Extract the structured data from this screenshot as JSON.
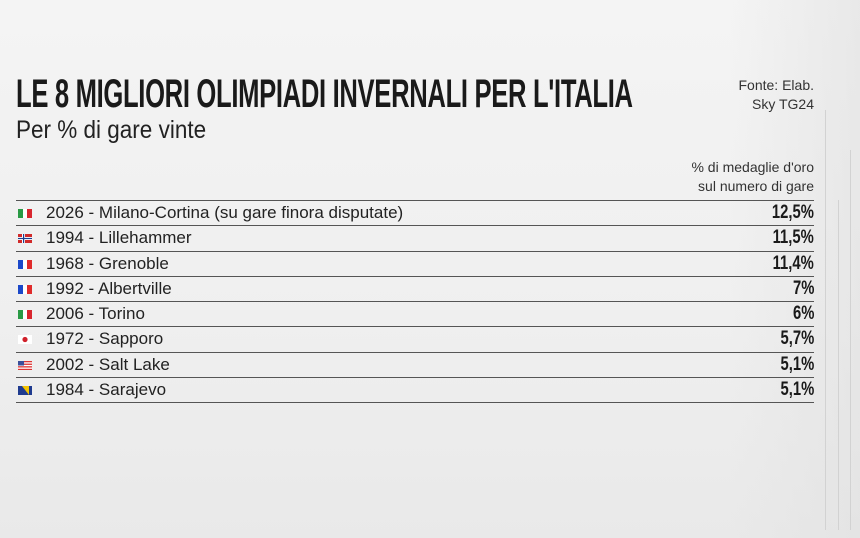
{
  "header": {
    "title": "LE 8 MIGLIORI OLIMPIADI INVERNALI PER L'ITALIA",
    "subtitle": "Per % di gare vinte",
    "source_line1": "Fonte: Elab.",
    "source_line2": "Sky TG24"
  },
  "chart_data": {
    "type": "table",
    "title": "LE 8 MIGLIORI OLIMPIADI INVERNALI PER L'ITALIA",
    "subtitle": "Per % di gare vinte",
    "column_header_line1": "% di medaglie d'oro",
    "column_header_line2": "sul numero di gare",
    "rows": [
      {
        "flag": "italy",
        "label": "2026 - Milano-Cortina (su gare finora disputate)",
        "value": "12,5%"
      },
      {
        "flag": "norway",
        "label": "1994 - Lillehammer",
        "value": "11,5%"
      },
      {
        "flag": "france",
        "label": "1968 - Grenoble",
        "value": "11,4%"
      },
      {
        "flag": "france",
        "label": "1992 - Albertville",
        "value": "7%"
      },
      {
        "flag": "italy",
        "label": "2006 - Torino",
        "value": "6%"
      },
      {
        "flag": "japan",
        "label": "1972 - Sapporo",
        "value": "5,7%"
      },
      {
        "flag": "usa",
        "label": "2002 - Salt Lake",
        "value": "5,1%"
      },
      {
        "flag": "bosnia",
        "label": "1984 - Sarajevo",
        "value": "5,1%"
      }
    ]
  }
}
